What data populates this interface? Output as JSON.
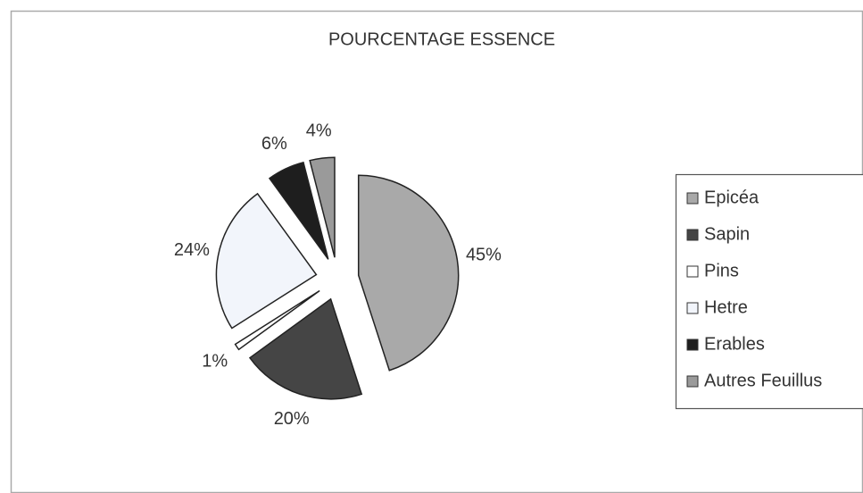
{
  "chart_data": {
    "type": "pie",
    "title": "POURCENTAGE ESSENCE",
    "categories": [
      "Epicéa",
      "Sapin",
      "Pins",
      "Hetre",
      "Erables",
      "Autres Feuillus"
    ],
    "values": [
      45,
      20,
      1,
      24,
      6,
      4
    ],
    "value_labels": [
      "45%",
      "20%",
      "1%",
      "24%",
      "6%",
      "4%"
    ],
    "colors": [
      "#a9a9a9",
      "#454545",
      "#ffffff",
      "#f2f5fb",
      "#1e1e1e",
      "#9a9a9a"
    ],
    "legend": "right"
  }
}
